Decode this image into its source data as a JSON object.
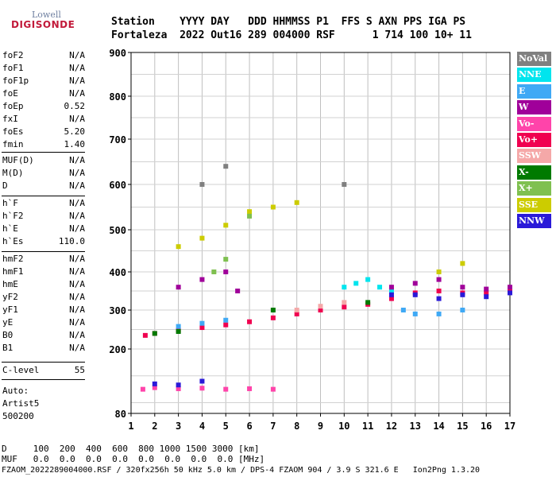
{
  "logo": {
    "line1": "Lowell",
    "line2": "DIGISONDE"
  },
  "header": {
    "line1": "Station    YYYY DAY   DDD HHMMSS P1  FFS S AXN PPS IGA PS",
    "line2": "Fortaleza  2022 Out16 289 004000 RSF      1 714 100 10+ 11"
  },
  "params": [
    {
      "name": "foF2",
      "value": "N/A"
    },
    {
      "name": "foF1",
      "value": "N/A"
    },
    {
      "name": "foF1p",
      "value": "N/A"
    },
    {
      "name": "foE",
      "value": "N/A"
    },
    {
      "name": "foEp",
      "value": "0.52"
    },
    {
      "name": "fxI",
      "value": "N/A"
    },
    {
      "name": "foEs",
      "value": "5.20"
    },
    {
      "name": "fmin",
      "value": "1.40"
    },
    {
      "name": "MUF(D)",
      "value": "N/A"
    },
    {
      "name": "M(D)",
      "value": "N/A"
    },
    {
      "name": "D",
      "value": "N/A"
    },
    {
      "name": "h`F",
      "value": "N/A"
    },
    {
      "name": "h`F2",
      "value": "N/A"
    },
    {
      "name": "h`E",
      "value": "N/A"
    },
    {
      "name": "h`Es",
      "value": "110.0"
    },
    {
      "name": "hmF2",
      "value": "N/A"
    },
    {
      "name": "hmF1",
      "value": "N/A"
    },
    {
      "name": "hmE",
      "value": "N/A"
    },
    {
      "name": "yF2",
      "value": "N/A"
    },
    {
      "name": "yF1",
      "value": "N/A"
    },
    {
      "name": "yE",
      "value": "N/A"
    },
    {
      "name": "B0",
      "value": "N/A"
    },
    {
      "name": "B1",
      "value": "N/A"
    },
    {
      "name": "C-level",
      "value": "55"
    }
  ],
  "autoscale": {
    "line1": "Auto:",
    "line2": "Artist5",
    "line3": "500200"
  },
  "legend": [
    {
      "label": "NoVal",
      "color": "#808080"
    },
    {
      "label": "NNE",
      "color": "#00e5ee"
    },
    {
      "label": "E",
      "color": "#3fa9f5"
    },
    {
      "label": "W",
      "color": "#a0009a"
    },
    {
      "label": "Vo-",
      "color": "#ff44aa"
    },
    {
      "label": "Vo+",
      "color": "#f00050"
    },
    {
      "label": "SSW",
      "color": "#f5a8a8"
    },
    {
      "label": "X-",
      "color": "#007a00"
    },
    {
      "label": "X+",
      "color": "#7fc050"
    },
    {
      "label": "SSE",
      "color": "#cccc00"
    },
    {
      "label": "NNW",
      "color": "#2a1ad8"
    }
  ],
  "footer": {
    "line1": "D     100  200  400  600  800 1000 1500 3000 [km]",
    "line2": "MUF   0.0  0.0  0.0  0.0  0.0  0.0  0.0  0.0 [MHz]",
    "line3": "FZAOM_2022289004000.RSF / 320fx256h 50 kHz 5.0 km / DPS-4 FZAOM 904 / 3.9 S 321.6 E   Ion2Png 1.3.20"
  },
  "chart_data": {
    "type": "scatter",
    "xlim": [
      1,
      17
    ],
    "ylim": [
      80,
      900
    ],
    "xticks": [
      "1",
      "2",
      "3",
      "4",
      "5",
      "6",
      "7",
      "8",
      "9",
      "10",
      "11",
      "12",
      "13",
      "14",
      "15",
      "16",
      "17"
    ],
    "yticks": [
      {
        "value": 80,
        "label": "80"
      },
      {
        "value": 200,
        "label": "200"
      },
      {
        "value": 300,
        "label": "300"
      },
      {
        "value": 400,
        "label": "400"
      },
      {
        "value": 500,
        "label": "500"
      },
      {
        "value": 600,
        "label": "600"
      },
      {
        "value": 700,
        "label": "700"
      },
      {
        "value": 800,
        "label": "800"
      },
      {
        "value": 900,
        "label": "900"
      }
    ],
    "grid": true,
    "legend_position": "right",
    "series": [
      {
        "color": "#ff44aa",
        "points": [
          [
            1.5,
            125
          ],
          [
            2,
            128
          ],
          [
            3,
            126
          ],
          [
            4,
            127
          ],
          [
            5,
            125
          ],
          [
            6,
            126
          ],
          [
            7,
            125
          ]
        ]
      },
      {
        "color": "#f00050",
        "points": [
          [
            1.6,
            235
          ],
          [
            2,
            240
          ],
          [
            3,
            248
          ],
          [
            4,
            255
          ],
          [
            5,
            262
          ],
          [
            6,
            270
          ],
          [
            7,
            280
          ],
          [
            8,
            290
          ],
          [
            9,
            300
          ],
          [
            10,
            308
          ],
          [
            11,
            315
          ],
          [
            12,
            330
          ],
          [
            13,
            345
          ],
          [
            14,
            350
          ],
          [
            15,
            345
          ],
          [
            16,
            345
          ],
          [
            17,
            350
          ]
        ]
      },
      {
        "color": "#3fa9f5",
        "points": [
          [
            3,
            258
          ],
          [
            4,
            266
          ],
          [
            5,
            274
          ],
          [
            12.5,
            300
          ],
          [
            13,
            290
          ],
          [
            14,
            290
          ],
          [
            15,
            300
          ]
        ]
      },
      {
        "color": "#00e5ee",
        "points": [
          [
            10,
            360
          ],
          [
            10.5,
            370
          ],
          [
            11,
            380
          ],
          [
            11.5,
            360
          ],
          [
            12,
            350
          ]
        ]
      },
      {
        "color": "#a0009a",
        "points": [
          [
            3,
            360
          ],
          [
            4,
            380
          ],
          [
            5,
            400
          ],
          [
            5.5,
            350
          ],
          [
            12,
            360
          ],
          [
            13,
            370
          ],
          [
            14,
            380
          ],
          [
            15,
            360
          ],
          [
            16,
            355
          ],
          [
            17,
            360
          ]
        ]
      },
      {
        "color": "#cccc00",
        "points": [
          [
            3,
            460
          ],
          [
            4,
            480
          ],
          [
            5,
            510
          ],
          [
            6,
            540
          ],
          [
            7,
            550
          ],
          [
            8,
            560
          ],
          [
            14,
            400
          ],
          [
            15,
            420
          ]
        ]
      },
      {
        "color": "#2a1ad8",
        "points": [
          [
            2,
            135
          ],
          [
            3,
            133
          ],
          [
            4,
            140
          ],
          [
            12,
            340
          ],
          [
            13,
            340
          ],
          [
            14,
            330
          ],
          [
            15,
            340
          ],
          [
            16,
            335
          ],
          [
            17,
            345
          ]
        ]
      },
      {
        "color": "#007a00",
        "points": [
          [
            2,
            240
          ],
          [
            3,
            245
          ],
          [
            7,
            300
          ],
          [
            11,
            320
          ]
        ]
      },
      {
        "color": "#f5a8a8",
        "points": [
          [
            8,
            300
          ],
          [
            9,
            310
          ],
          [
            10,
            320
          ]
        ]
      },
      {
        "color": "#7fc050",
        "points": [
          [
            4.5,
            400
          ],
          [
            5,
            430
          ],
          [
            6,
            530
          ]
        ]
      },
      {
        "color": "#808080",
        "points": [
          [
            4,
            600
          ],
          [
            5,
            640
          ],
          [
            10,
            600
          ]
        ]
      }
    ]
  }
}
